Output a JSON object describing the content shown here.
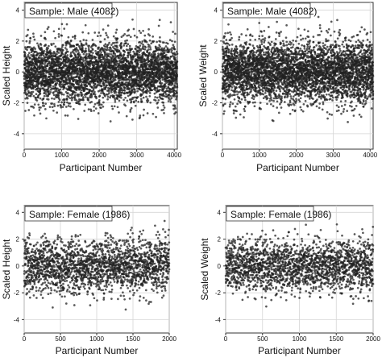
{
  "chart_data": [
    {
      "type": "scatter",
      "title": "Sample: Male (4082)",
      "xlabel": "Participant Number",
      "ylabel": "Scaled Height",
      "xlim": [
        0,
        4082
      ],
      "ylim": [
        -5,
        4.5
      ],
      "xticks": [
        "0",
        "1000",
        "2000",
        "3000",
        "4000"
      ],
      "yticks": [
        "4",
        "2",
        "0",
        "-2",
        "-4"
      ],
      "grid": true,
      "n_points": 4082,
      "mean": 0,
      "sd": 1,
      "marker_color": "#222222",
      "seed": 11
    },
    {
      "type": "scatter",
      "title": "Sample: Male (4082)",
      "xlabel": "Participant Number",
      "ylabel": "Scaled Weight",
      "xlim": [
        0,
        4082
      ],
      "ylim": [
        -5,
        4.5
      ],
      "xticks": [
        "0",
        "1000",
        "2000",
        "3000",
        "4000"
      ],
      "yticks": [
        "4",
        "2",
        "0",
        "-2",
        "-4"
      ],
      "grid": true,
      "n_points": 4082,
      "mean": 0,
      "sd": 1,
      "marker_color": "#222222",
      "seed": 23
    },
    {
      "type": "scatter",
      "title": "Sample: Female (1986)",
      "xlabel": "Participant Number",
      "ylabel": "Scaled Height",
      "xlim": [
        0,
        2000
      ],
      "ylim": [
        -5,
        4.5
      ],
      "xticks": [
        "0",
        "500",
        "1000",
        "1500",
        "2000"
      ],
      "yticks": [
        "4",
        "2",
        "0",
        "-2",
        "-4"
      ],
      "grid": true,
      "n_points": 1986,
      "mean": 0,
      "sd": 1,
      "marker_color": "#222222",
      "seed": 37
    },
    {
      "type": "scatter",
      "title": "Sample: Female (1986)",
      "xlabel": "Participant Number",
      "ylabel": "Scaled Weight",
      "xlim": [
        0,
        2000
      ],
      "ylim": [
        -5,
        4.5
      ],
      "xticks": [
        "0",
        "500",
        "1000",
        "1500",
        "2000"
      ],
      "yticks": [
        "4",
        "2",
        "0",
        "-2",
        "-4"
      ],
      "grid": true,
      "n_points": 1986,
      "mean": 0,
      "sd": 1,
      "marker_color": "#222222",
      "seed": 51
    }
  ]
}
